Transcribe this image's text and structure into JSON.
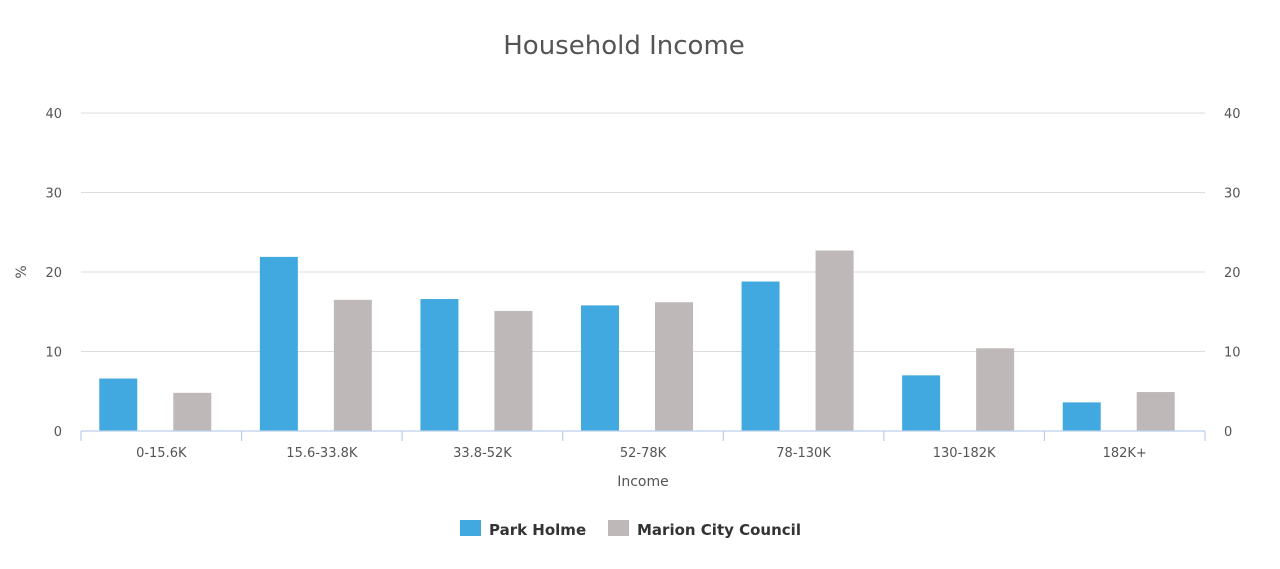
{
  "chart_data": {
    "type": "bar",
    "title": "Household Income",
    "xlabel": "Income",
    "ylabel": "%",
    "ylim": [
      0,
      40
    ],
    "yticks": [
      0,
      10,
      20,
      30,
      40
    ],
    "secondary_y_axis": true,
    "grid": true,
    "legend_position": "bottom-center",
    "categories": [
      "0-15.6K",
      "15.6-33.8K",
      "33.8-52K",
      "52-78K",
      "78-130K",
      "130-182K",
      "182K+"
    ],
    "series": [
      {
        "name": "Park Holme",
        "color": "#41a9e0",
        "values": [
          6.6,
          21.9,
          16.6,
          15.8,
          18.8,
          7.0,
          3.6
        ]
      },
      {
        "name": "Marion City Council",
        "color": "#bfb8b8",
        "values": [
          4.8,
          16.5,
          15.1,
          16.2,
          22.7,
          10.4,
          4.9
        ]
      }
    ]
  }
}
